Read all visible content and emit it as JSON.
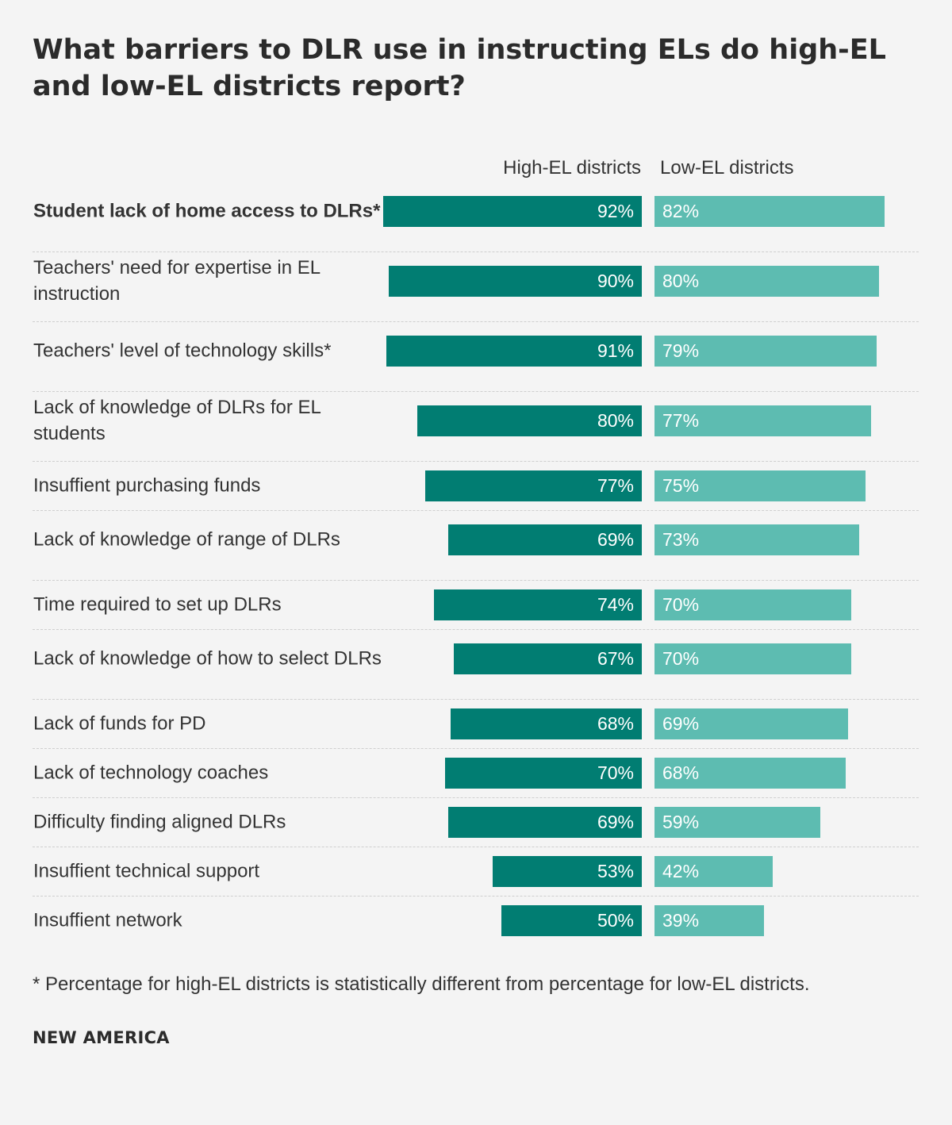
{
  "title": "What barriers to DLR use in instructing ELs do high-EL and low-EL districts report?",
  "columns": {
    "high": "High-EL districts",
    "low": "Low-EL districts"
  },
  "colors": {
    "high": "#017d72",
    "low": "#5dbcb1"
  },
  "chart_data": {
    "type": "bar",
    "title": "What barriers to DLR use in instructing ELs do high-EL and low-EL districts report?",
    "orientation": "horizontal",
    "xlim": [
      0,
      100
    ],
    "categories": [
      "Student lack of home access to DLRs*",
      "Teachers' need for expertise in EL instruction",
      "Teachers' level of technology skills*",
      "Lack of knowledge of DLRs for EL students",
      "Insuffient purchasing funds",
      "Lack of knowledge of range of DLRs",
      "Time required to set up DLRs",
      "Lack of knowledge of how to select DLRs",
      "Lack of funds for PD",
      "Lack of technology coaches",
      "Difficulty finding aligned DLRs",
      "Insuffient technical support",
      "Insuffient network"
    ],
    "bold_categories": [
      0
    ],
    "series": [
      {
        "name": "High-EL districts",
        "values": [
          92,
          90,
          91,
          80,
          77,
          69,
          74,
          67,
          68,
          70,
          69,
          53,
          50
        ]
      },
      {
        "name": "Low-EL districts",
        "values": [
          82,
          80,
          79,
          77,
          75,
          73,
          70,
          70,
          69,
          68,
          59,
          42,
          39
        ]
      }
    ],
    "value_suffix": "%"
  },
  "footnote": "* Percentage for high-EL districts is statistically different from percentage for low-EL districts.",
  "brand": "NEW AMERICA"
}
